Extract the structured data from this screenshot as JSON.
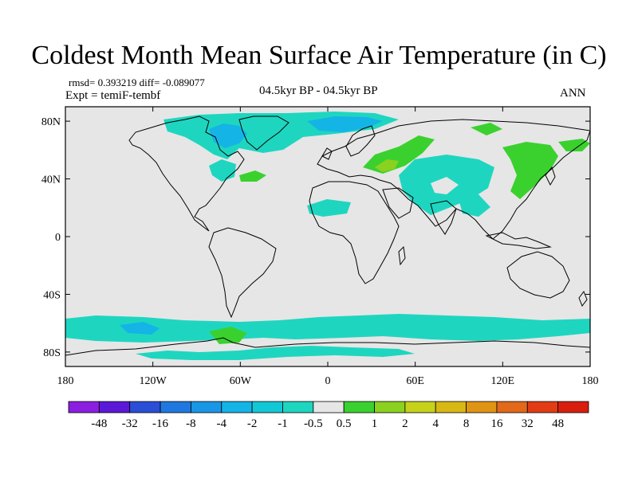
{
  "title": "Coldest Month Mean Surface Air Temperature (in C)",
  "stats": "rmsd= 0.393219  diff= -0.089077",
  "experiment": "Expt = temiF-tembf",
  "period": "04.5kyr BP - 04.5kyr BP",
  "season": "ANN",
  "axes": {
    "y_ticks": [
      {
        "value": 80,
        "label": "80N"
      },
      {
        "value": 40,
        "label": "40N"
      },
      {
        "value": 0,
        "label": "0"
      },
      {
        "value": -40,
        "label": "40S"
      },
      {
        "value": -80,
        "label": "80S"
      }
    ],
    "x_ticks": [
      {
        "value": -180,
        "label": "180"
      },
      {
        "value": -120,
        "label": "120W"
      },
      {
        "value": -60,
        "label": "60W"
      },
      {
        "value": 0,
        "label": "0"
      },
      {
        "value": 60,
        "label": "60E"
      },
      {
        "value": 120,
        "label": "120E"
      },
      {
        "value": 180,
        "label": "180"
      }
    ]
  },
  "colorbar": {
    "colors": [
      "#8b1fe0",
      "#5b18d8",
      "#2a4fd6",
      "#1f78e0",
      "#1a96e6",
      "#14b4e6",
      "#12c8d6",
      "#1ed6c0",
      "#e6e6e6",
      "#3ad12f",
      "#8bd11f",
      "#c6d11a",
      "#d8b814",
      "#e09414",
      "#e2681a",
      "#e23c14",
      "#d81f0e"
    ],
    "labels": [
      "-48",
      "-32",
      "-16",
      "-8",
      "-4",
      "-2",
      "-1",
      "-0.5",
      "0.5",
      "1",
      "2",
      "4",
      "8",
      "16",
      "32",
      "48"
    ]
  }
}
